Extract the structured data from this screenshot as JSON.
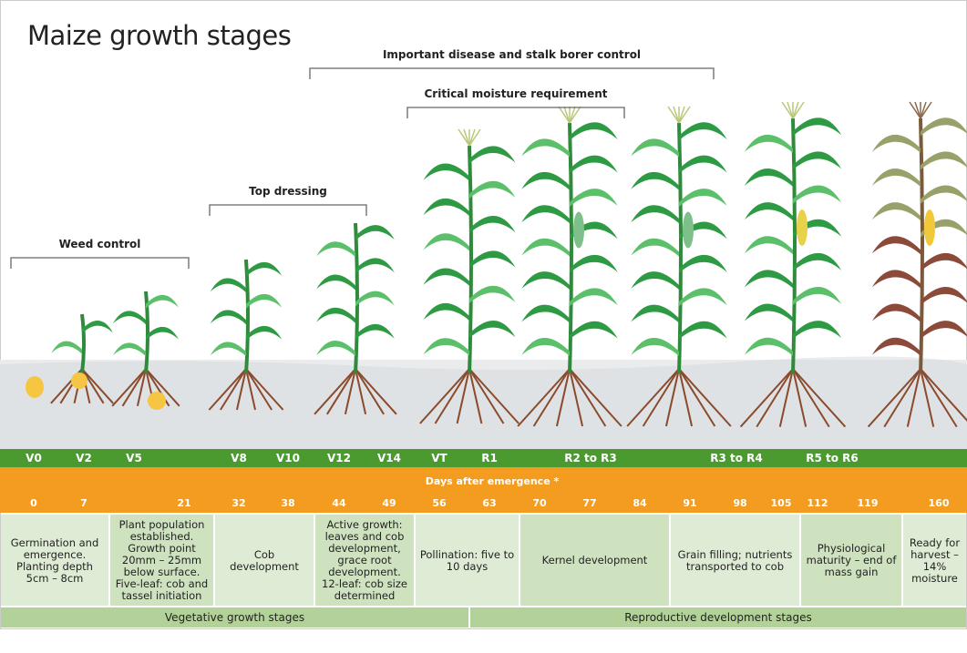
{
  "title": "Maize growth stages",
  "brackets": [
    {
      "label": "Weed control"
    },
    {
      "label": "Top dressing"
    },
    {
      "label": "Important disease and stalk borer control"
    },
    {
      "label": "Critical moisture requirement"
    }
  ],
  "stages": [
    "V0",
    "V2",
    "V5",
    "V8",
    "V10",
    "V12",
    "V14",
    "VT",
    "R1",
    "R2 to R3",
    "R3 to R4",
    "R5 to R6"
  ],
  "days_label": "Days after emergence *",
  "days": [
    0,
    7,
    21,
    32,
    38,
    44,
    49,
    56,
    63,
    70,
    77,
    84,
    91,
    98,
    105,
    112,
    119,
    160
  ],
  "descriptions": [
    "Germination and emergence. Planting depth 5cm – 8cm",
    "Plant population established. Growth point 20mm – 25mm below surface. Five-leaf: cob and tassel initiation",
    "Cob development",
    "Active growth: leaves and cob development, grace root development. 12-leaf: cob size determined",
    "Pollination: five to 10 days",
    "Kernel development",
    "Grain filling; nutrients transported to cob",
    "Physiological maturity – end of mass gain",
    "Ready for harvest – 14% moisture"
  ],
  "phases": [
    "Vegetative growth stages",
    "Reproductive development stages"
  ]
}
